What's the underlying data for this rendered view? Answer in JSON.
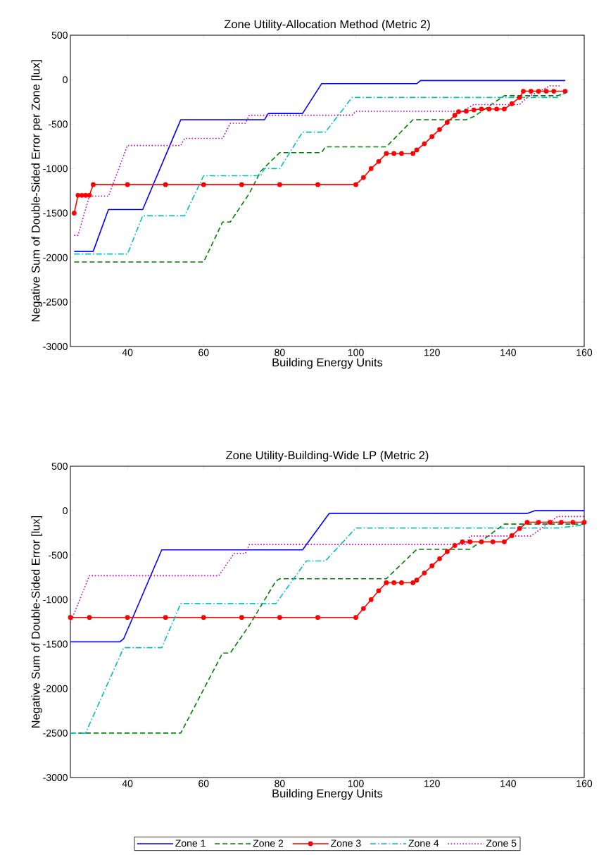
{
  "chart_data": [
    {
      "type": "line",
      "title": "Zone Utility-Allocation Method (Metric 2)",
      "xlabel": "Building Energy Units",
      "ylabel": "Negative Sum of Double-Sided Error per Zone [lux]",
      "xlim": [
        25,
        160
      ],
      "ylim": [
        -3000,
        500
      ],
      "xticks": [
        40,
        60,
        80,
        100,
        120,
        140,
        160
      ],
      "yticks": [
        -3000,
        -2500,
        -2000,
        -1500,
        -1000,
        -500,
        0,
        500
      ],
      "grid": false,
      "legend": false,
      "series": [
        {
          "color": "#0000ff",
          "line_style": "solid",
          "marker": "none",
          "x": [
            26,
            31,
            35,
            44,
            54,
            76,
            77,
            86,
            91,
            116,
            117,
            155
          ],
          "values": [
            -1930,
            -1930,
            -1460,
            -1460,
            -450,
            -450,
            -380,
            -380,
            -45,
            -45,
            -10,
            -10
          ]
        },
        {
          "color": "#008000",
          "line_style": "dashed",
          "marker": "none",
          "x": [
            26,
            60,
            65,
            67,
            72,
            75,
            80,
            91,
            92,
            108,
            115,
            129,
            131,
            139,
            153,
            155
          ],
          "values": [
            -2050,
            -2050,
            -1600,
            -1600,
            -1280,
            -1030,
            -820,
            -820,
            -755,
            -755,
            -450,
            -450,
            -415,
            -180,
            -180,
            -150
          ]
        },
        {
          "color": "#ff0000",
          "line_style": "solid",
          "marker": "circle",
          "x": [
            26,
            27,
            28,
            29,
            30,
            31,
            40,
            50,
            60,
            70,
            80,
            90,
            100,
            102,
            104,
            106,
            108,
            110,
            112,
            115,
            116,
            118,
            120,
            122,
            124,
            126,
            127,
            129,
            131,
            133,
            135,
            137,
            139,
            141,
            143,
            144,
            146,
            148,
            150,
            152,
            155
          ],
          "values": [
            -1500,
            -1300,
            -1300,
            -1300,
            -1300,
            -1180,
            -1180,
            -1180,
            -1180,
            -1180,
            -1180,
            -1180,
            -1180,
            -1100,
            -1000,
            -920,
            -830,
            -830,
            -830,
            -830,
            -790,
            -720,
            -640,
            -560,
            -480,
            -400,
            -360,
            -355,
            -340,
            -330,
            -330,
            -330,
            -330,
            -270,
            -200,
            -130,
            -130,
            -130,
            -130,
            -130,
            -130
          ]
        },
        {
          "color": "#00bfbf",
          "line_style": "dashdot",
          "marker": "none",
          "x": [
            26,
            40,
            44,
            55,
            60,
            75,
            76,
            80,
            86,
            92,
            99,
            153,
            155
          ],
          "values": [
            -1960,
            -1960,
            -1530,
            -1530,
            -1080,
            -1080,
            -1000,
            -1000,
            -590,
            -590,
            -200,
            -200,
            -150
          ]
        },
        {
          "color": "#bf00bf",
          "line_style": "dotted",
          "marker": "none",
          "x": [
            26,
            27,
            30,
            35,
            40,
            54,
            55,
            65,
            67,
            71,
            72,
            99,
            100,
            128,
            131,
            143,
            145,
            151,
            154
          ],
          "values": [
            -1750,
            -1750,
            -1310,
            -1310,
            -740,
            -740,
            -660,
            -660,
            -490,
            -490,
            -400,
            -400,
            -355,
            -355,
            -280,
            -280,
            -200,
            -70,
            -70
          ]
        }
      ]
    },
    {
      "type": "line",
      "title": "Zone Utility-Building-Wide LP (Metric 2)",
      "xlabel": "Building Energy Units",
      "ylabel": "Negative Sum of Double-Sided Error [lux]",
      "xlim": [
        25,
        160
      ],
      "ylim": [
        -3000,
        500
      ],
      "xticks": [
        40,
        60,
        80,
        100,
        120,
        140,
        160
      ],
      "yticks": [
        -3000,
        -2500,
        -2000,
        -1500,
        -1000,
        -500,
        0,
        500
      ],
      "grid": false,
      "legend": "bottom",
      "series": [
        {
          "name": "Zone 1",
          "color": "#0000ff",
          "line_style": "solid",
          "marker": "none",
          "x": [
            25,
            38,
            39,
            49,
            86,
            93,
            145,
            147,
            160
          ],
          "values": [
            -1475,
            -1475,
            -1440,
            -440,
            -440,
            -30,
            -30,
            0,
            0
          ]
        },
        {
          "name": "Zone 2",
          "color": "#008000",
          "line_style": "dashed",
          "marker": "none",
          "x": [
            25,
            54,
            65,
            67,
            72,
            79,
            80,
            108,
            116,
            130,
            139,
            160
          ],
          "values": [
            -2500,
            -2500,
            -1600,
            -1600,
            -1290,
            -790,
            -765,
            -765,
            -435,
            -435,
            -150,
            -150
          ]
        },
        {
          "name": "Zone 3",
          "color": "#ff0000",
          "line_style": "solid",
          "marker": "circle",
          "x": [
            25,
            30,
            40,
            50,
            60,
            70,
            80,
            90,
            100,
            102,
            104,
            106,
            108,
            110,
            112,
            115,
            116,
            118,
            120,
            122,
            124,
            126,
            128,
            130,
            133,
            136,
            139,
            141,
            143,
            145,
            148,
            151,
            154,
            157,
            160
          ],
          "values": [
            -1200,
            -1200,
            -1200,
            -1200,
            -1200,
            -1200,
            -1200,
            -1200,
            -1200,
            -1100,
            -1000,
            -900,
            -810,
            -810,
            -810,
            -810,
            -780,
            -700,
            -620,
            -540,
            -460,
            -390,
            -350,
            -350,
            -350,
            -350,
            -350,
            -280,
            -200,
            -130,
            -130,
            -130,
            -130,
            -130,
            -130
          ]
        },
        {
          "name": "Zone 4",
          "color": "#00bfbf",
          "line_style": "dashdot",
          "marker": "none",
          "x": [
            25,
            29,
            39,
            49,
            54,
            79,
            87,
            92,
            100,
            153,
            160
          ],
          "values": [
            -2500,
            -2500,
            -1540,
            -1540,
            -1045,
            -1045,
            -565,
            -565,
            -195,
            -195,
            -160
          ]
        },
        {
          "name": "Zone 5",
          "color": "#bf00bf",
          "line_style": "dotted",
          "marker": "none",
          "x": [
            25,
            30,
            64,
            68,
            71,
            72,
            129,
            130,
            146,
            153,
            160
          ],
          "values": [
            -1260,
            -730,
            -730,
            -480,
            -480,
            -380,
            -380,
            -285,
            -285,
            -65,
            -65
          ]
        }
      ]
    }
  ]
}
